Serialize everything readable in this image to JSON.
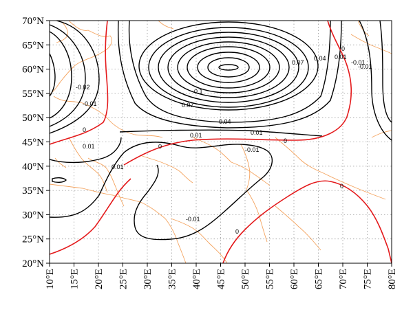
{
  "map": {
    "extent": {
      "lon": [
        10,
        80
      ],
      "lat": [
        20,
        70
      ]
    },
    "lat_labels": [
      "70°N",
      "65°N",
      "60°N",
      "55°N",
      "50°N",
      "45°N",
      "40°N",
      "35°N",
      "30°N",
      "25°N",
      "20°N"
    ],
    "lon_labels": [
      "10°E",
      "15°E",
      "20°E",
      "25°E",
      "30°E",
      "35°E",
      "40°E",
      "45°E",
      "50°E",
      "55°E",
      "60°E",
      "65°E",
      "70°E",
      "75°E",
      "80°E"
    ],
    "grid": "dotted, every 5°",
    "colors": {
      "contour": "#000000",
      "zero_contour": "#e41a1c",
      "coastline": "#f4a460",
      "grid": "#9a9a9a"
    },
    "contour_labels": [
      "0.1",
      "0.07",
      "0.04",
      "0.01",
      "0",
      "-0.01",
      "0.07",
      "0.04",
      "0.01",
      "0",
      "-0.01",
      "-0.02",
      "-0.01",
      "0",
      "0.01",
      "0.01",
      "0",
      "0.01",
      "-0.01",
      "-0.01",
      "0",
      "0"
    ]
  }
}
